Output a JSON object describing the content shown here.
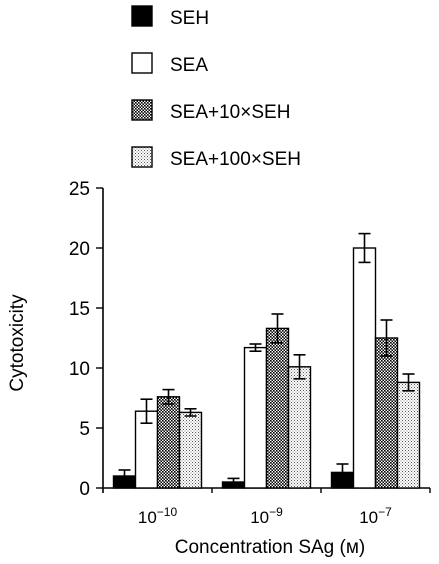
{
  "chart_data": {
    "type": "bar",
    "title": "",
    "ylabel": "Cytotoxicity",
    "xlabel": "Concentration SAg (м)",
    "ylim": [
      0,
      25
    ],
    "yticks": [
      0,
      5,
      10,
      15,
      20,
      25
    ],
    "grid": false,
    "legend_position": "top",
    "categories": [
      {
        "base": "10",
        "exp": "−10"
      },
      {
        "base": "10",
        "exp": "−9"
      },
      {
        "base": "10",
        "exp": "−7"
      }
    ],
    "series": [
      {
        "name": "SEH",
        "pattern": "solid-black",
        "values": [
          1.0,
          0.5,
          1.3
        ],
        "errors": [
          0.5,
          0.3,
          0.7
        ]
      },
      {
        "name": "SEA",
        "pattern": "white",
        "values": [
          6.4,
          11.7,
          20.0
        ],
        "errors": [
          1.0,
          0.3,
          1.2
        ]
      },
      {
        "name": "SEA+10×SEH",
        "pattern": "dense-dots",
        "values": [
          7.6,
          13.3,
          12.5
        ],
        "errors": [
          0.6,
          1.2,
          1.5
        ]
      },
      {
        "name": "SEA+100×SEH",
        "pattern": "light-dots",
        "values": [
          6.3,
          10.1,
          8.8
        ],
        "errors": [
          0.3,
          1.0,
          0.7
        ]
      }
    ]
  }
}
